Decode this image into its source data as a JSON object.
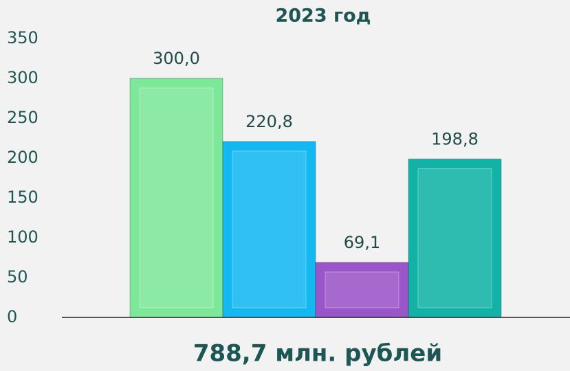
{
  "chart_data": {
    "type": "bar",
    "title": "2023 год",
    "subtitle": "788,7 млн. рублей",
    "categories": [
      null,
      null,
      null,
      null
    ],
    "values": [
      300,
      220.8,
      69.1,
      198.8
    ],
    "value_labels": [
      "300,0",
      "220,8",
      "69,1",
      "198,8"
    ],
    "colors": [
      "#7ee89a",
      "#14b8f0",
      "#9a56c8",
      "#12b2a6"
    ],
    "ylim": [
      0,
      350
    ],
    "yticks": [
      0,
      50,
      100,
      150,
      200,
      250,
      300,
      350
    ],
    "grid": false
  }
}
